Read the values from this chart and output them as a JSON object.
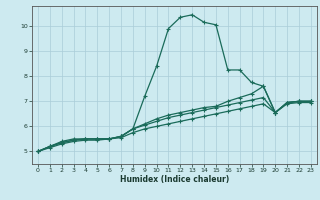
{
  "xlabel": "Humidex (Indice chaleur)",
  "xlim": [
    -0.5,
    23.5
  ],
  "ylim": [
    4.5,
    10.8
  ],
  "yticks": [
    5,
    6,
    7,
    8,
    9,
    10
  ],
  "xticks": [
    0,
    1,
    2,
    3,
    4,
    5,
    6,
    7,
    8,
    9,
    10,
    11,
    12,
    13,
    14,
    15,
    16,
    17,
    18,
    19,
    20,
    21,
    22,
    23
  ],
  "bg_color": "#cdeaf0",
  "grid_color": "#aacdd8",
  "line_color": "#1a6b5a",
  "series": [
    [
      5.0,
      5.2,
      5.4,
      5.5,
      5.5,
      5.5,
      5.5,
      5.6,
      5.9,
      7.2,
      8.4,
      9.9,
      10.35,
      10.45,
      10.15,
      10.05,
      8.25,
      8.25,
      7.75,
      7.6,
      6.55,
      6.95,
      7.0,
      7.0
    ],
    [
      5.0,
      5.2,
      5.35,
      5.45,
      5.5,
      5.5,
      5.5,
      5.6,
      5.9,
      6.1,
      6.3,
      6.45,
      6.55,
      6.65,
      6.75,
      6.8,
      7.0,
      7.15,
      7.3,
      7.6,
      6.55,
      6.95,
      7.0,
      7.0
    ],
    [
      5.0,
      5.2,
      5.35,
      5.45,
      5.5,
      5.5,
      5.5,
      5.6,
      5.9,
      6.05,
      6.2,
      6.35,
      6.45,
      6.55,
      6.65,
      6.75,
      6.85,
      6.95,
      7.05,
      7.15,
      6.55,
      6.95,
      7.0,
      7.0
    ],
    [
      5.0,
      5.15,
      5.3,
      5.4,
      5.45,
      5.45,
      5.5,
      5.55,
      5.75,
      5.9,
      6.0,
      6.1,
      6.2,
      6.3,
      6.4,
      6.5,
      6.6,
      6.7,
      6.8,
      6.9,
      6.55,
      6.9,
      6.95,
      6.95
    ]
  ]
}
